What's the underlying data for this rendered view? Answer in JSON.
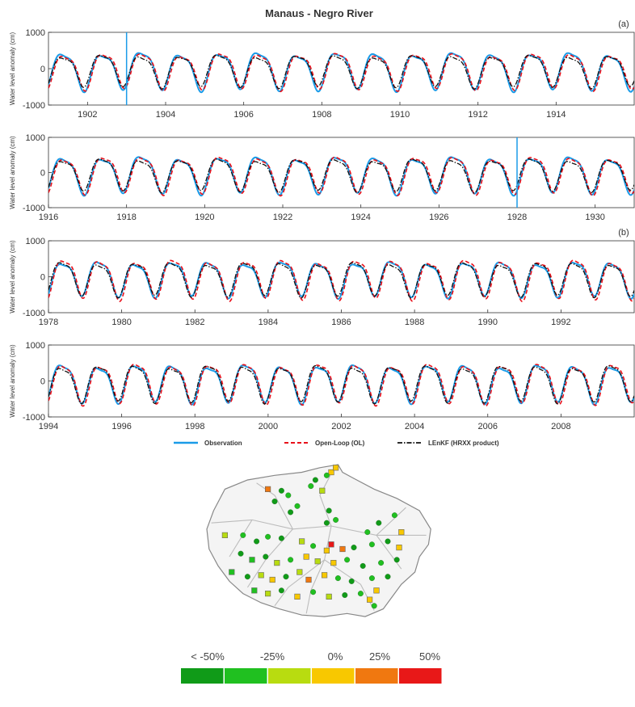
{
  "title": "Manaus - Negro River",
  "panel_labels": [
    "(a)",
    "(b)"
  ],
  "colors": {
    "observation": "#1a9be8",
    "open_loop": "#e8101a",
    "lenkf": "#111111",
    "scale": [
      "#109b18",
      "#20c020",
      "#b8dc10",
      "#f8c800",
      "#f07810",
      "#e81818"
    ]
  },
  "chart_data": [
    {
      "type": "line",
      "ylabel": "Water level anomaly (cm)",
      "ylim": [
        -1000,
        1000
      ],
      "yticks": [
        1000,
        0,
        -1000
      ],
      "xlim": [
        1901,
        1916
      ],
      "xticks": [
        1902,
        1904,
        1906,
        1908,
        1910,
        1912,
        1914
      ],
      "markers": [
        1903
      ],
      "series": [
        {
          "name": "Observation",
          "style": "solid",
          "amplitude": 550
        },
        {
          "name": "Open-Loop (OL)",
          "style": "dashed",
          "amplitude": 530
        },
        {
          "name": "LEnKF (HRXX product)",
          "style": "dashdot",
          "amplitude": 470
        }
      ]
    },
    {
      "type": "line",
      "ylabel": "Water level anomaly (cm)",
      "ylim": [
        -1000,
        1000
      ],
      "yticks": [
        1000,
        0,
        -1000
      ],
      "xlim": [
        1916,
        1931
      ],
      "xticks": [
        1916,
        1918,
        1920,
        1922,
        1924,
        1926,
        1928,
        1930
      ],
      "markers": [
        1928
      ],
      "series": [
        {
          "name": "Observation",
          "style": "solid",
          "amplitude": 560
        },
        {
          "name": "Open-Loop (OL)",
          "style": "dashed",
          "amplitude": 560
        },
        {
          "name": "LEnKF (HRXX product)",
          "style": "dashdot",
          "amplitude": 490
        }
      ]
    },
    {
      "type": "line",
      "ylabel": "Water level anomaly (cm)",
      "ylim": [
        -1000,
        1000
      ],
      "yticks": [
        1000,
        0,
        -1000
      ],
      "xlim": [
        1978,
        1994
      ],
      "xticks": [
        1978,
        1980,
        1982,
        1984,
        1986,
        1988,
        1990,
        1992
      ],
      "markers": [],
      "series": [
        {
          "name": "Observation",
          "style": "solid",
          "amplitude": 520
        },
        {
          "name": "Open-Loop (OL)",
          "style": "dashed",
          "amplitude": 580
        },
        {
          "name": "LEnKF (HRXX product)",
          "style": "dashdot",
          "amplitude": 500
        }
      ]
    },
    {
      "type": "line",
      "ylabel": "Water level anomaly (cm)",
      "ylim": [
        -1000,
        1000
      ],
      "yticks": [
        1000,
        0,
        -1000
      ],
      "xlim": [
        1994,
        2010
      ],
      "xticks": [
        1994,
        1996,
        1998,
        2000,
        2002,
        2004,
        2006,
        2008
      ],
      "markers": [],
      "series": [
        {
          "name": "Observation",
          "style": "solid",
          "amplitude": 560
        },
        {
          "name": "Open-Loop (OL)",
          "style": "dashed",
          "amplitude": 590
        },
        {
          "name": "LEnKF (HRXX product)",
          "style": "dashdot",
          "amplitude": 540
        }
      ]
    }
  ],
  "legend": [
    "Observation",
    "Open-Loop (OL)",
    "LEnKF (HRXX product)"
  ],
  "map_scale": {
    "labels": [
      "< -50%",
      "-25%",
      "0%",
      "25%",
      "50%"
    ]
  },
  "map_stations": [
    {
      "lon": 0.55,
      "lat": 0.05,
      "cls": 3,
      "shape": "square"
    },
    {
      "lon": 0.57,
      "lat": 0.02,
      "cls": 3,
      "shape": "square"
    },
    {
      "lon": 0.53,
      "lat": 0.07,
      "cls": 1,
      "shape": "circle"
    },
    {
      "lon": 0.48,
      "lat": 0.1,
      "cls": 0,
      "shape": "circle"
    },
    {
      "lon": 0.46,
      "lat": 0.14,
      "cls": 1,
      "shape": "circle"
    },
    {
      "lon": 0.51,
      "lat": 0.17,
      "cls": 2,
      "shape": "square"
    },
    {
      "lon": 0.27,
      "lat": 0.16,
      "cls": 4,
      "shape": "square"
    },
    {
      "lon": 0.33,
      "lat": 0.17,
      "cls": 0,
      "shape": "circle"
    },
    {
      "lon": 0.36,
      "lat": 0.2,
      "cls": 1,
      "shape": "circle"
    },
    {
      "lon": 0.3,
      "lat": 0.24,
      "cls": 0,
      "shape": "circle"
    },
    {
      "lon": 0.4,
      "lat": 0.27,
      "cls": 1,
      "shape": "circle"
    },
    {
      "lon": 0.37,
      "lat": 0.31,
      "cls": 0,
      "shape": "circle"
    },
    {
      "lon": 0.54,
      "lat": 0.3,
      "cls": 0,
      "shape": "circle"
    },
    {
      "lon": 0.57,
      "lat": 0.36,
      "cls": 1,
      "shape": "circle"
    },
    {
      "lon": 0.53,
      "lat": 0.38,
      "cls": 0,
      "shape": "circle"
    },
    {
      "lon": 0.83,
      "lat": 0.33,
      "cls": 1,
      "shape": "circle"
    },
    {
      "lon": 0.76,
      "lat": 0.38,
      "cls": 0,
      "shape": "circle"
    },
    {
      "lon": 0.71,
      "lat": 0.44,
      "cls": 1,
      "shape": "circle"
    },
    {
      "lon": 0.86,
      "lat": 0.44,
      "cls": 3,
      "shape": "square"
    },
    {
      "lon": 0.08,
      "lat": 0.46,
      "cls": 2,
      "shape": "square"
    },
    {
      "lon": 0.16,
      "lat": 0.46,
      "cls": 1,
      "shape": "circle"
    },
    {
      "lon": 0.22,
      "lat": 0.5,
      "cls": 0,
      "shape": "circle"
    },
    {
      "lon": 0.27,
      "lat": 0.47,
      "cls": 1,
      "shape": "circle"
    },
    {
      "lon": 0.33,
      "lat": 0.48,
      "cls": 0,
      "shape": "circle"
    },
    {
      "lon": 0.42,
      "lat": 0.5,
      "cls": 2,
      "shape": "square"
    },
    {
      "lon": 0.47,
      "lat": 0.53,
      "cls": 1,
      "shape": "circle"
    },
    {
      "lon": 0.55,
      "lat": 0.52,
      "cls": 5,
      "shape": "square"
    },
    {
      "lon": 0.53,
      "lat": 0.56,
      "cls": 3,
      "shape": "square"
    },
    {
      "lon": 0.6,
      "lat": 0.55,
      "cls": 4,
      "shape": "square"
    },
    {
      "lon": 0.65,
      "lat": 0.54,
      "cls": 0,
      "shape": "circle"
    },
    {
      "lon": 0.73,
      "lat": 0.52,
      "cls": 1,
      "shape": "circle"
    },
    {
      "lon": 0.8,
      "lat": 0.5,
      "cls": 0,
      "shape": "circle"
    },
    {
      "lon": 0.85,
      "lat": 0.54,
      "cls": 3,
      "shape": "square"
    },
    {
      "lon": 0.15,
      "lat": 0.58,
      "cls": 0,
      "shape": "circle"
    },
    {
      "lon": 0.2,
      "lat": 0.62,
      "cls": 1,
      "shape": "square"
    },
    {
      "lon": 0.26,
      "lat": 0.6,
      "cls": 0,
      "shape": "circle"
    },
    {
      "lon": 0.31,
      "lat": 0.64,
      "cls": 2,
      "shape": "square"
    },
    {
      "lon": 0.37,
      "lat": 0.62,
      "cls": 1,
      "shape": "circle"
    },
    {
      "lon": 0.44,
      "lat": 0.6,
      "cls": 3,
      "shape": "square"
    },
    {
      "lon": 0.49,
      "lat": 0.63,
      "cls": 2,
      "shape": "square"
    },
    {
      "lon": 0.56,
      "lat": 0.64,
      "cls": 3,
      "shape": "square"
    },
    {
      "lon": 0.62,
      "lat": 0.62,
      "cls": 1,
      "shape": "circle"
    },
    {
      "lon": 0.69,
      "lat": 0.66,
      "cls": 0,
      "shape": "circle"
    },
    {
      "lon": 0.77,
      "lat": 0.64,
      "cls": 1,
      "shape": "circle"
    },
    {
      "lon": 0.84,
      "lat": 0.62,
      "cls": 0,
      "shape": "circle"
    },
    {
      "lon": 0.11,
      "lat": 0.7,
      "cls": 1,
      "shape": "square"
    },
    {
      "lon": 0.18,
      "lat": 0.73,
      "cls": 0,
      "shape": "circle"
    },
    {
      "lon": 0.24,
      "lat": 0.72,
      "cls": 2,
      "shape": "square"
    },
    {
      "lon": 0.29,
      "lat": 0.75,
      "cls": 3,
      "shape": "square"
    },
    {
      "lon": 0.35,
      "lat": 0.73,
      "cls": 0,
      "shape": "circle"
    },
    {
      "lon": 0.41,
      "lat": 0.7,
      "cls": 2,
      "shape": "square"
    },
    {
      "lon": 0.45,
      "lat": 0.75,
      "cls": 4,
      "shape": "square"
    },
    {
      "lon": 0.52,
      "lat": 0.72,
      "cls": 3,
      "shape": "square"
    },
    {
      "lon": 0.58,
      "lat": 0.74,
      "cls": 1,
      "shape": "circle"
    },
    {
      "lon": 0.64,
      "lat": 0.76,
      "cls": 0,
      "shape": "circle"
    },
    {
      "lon": 0.73,
      "lat": 0.74,
      "cls": 1,
      "shape": "circle"
    },
    {
      "lon": 0.8,
      "lat": 0.73,
      "cls": 0,
      "shape": "circle"
    },
    {
      "lon": 0.21,
      "lat": 0.82,
      "cls": 1,
      "shape": "square"
    },
    {
      "lon": 0.27,
      "lat": 0.84,
      "cls": 2,
      "shape": "square"
    },
    {
      "lon": 0.33,
      "lat": 0.82,
      "cls": 0,
      "shape": "circle"
    },
    {
      "lon": 0.4,
      "lat": 0.86,
      "cls": 3,
      "shape": "square"
    },
    {
      "lon": 0.47,
      "lat": 0.83,
      "cls": 1,
      "shape": "circle"
    },
    {
      "lon": 0.54,
      "lat": 0.86,
      "cls": 2,
      "shape": "square"
    },
    {
      "lon": 0.61,
      "lat": 0.85,
      "cls": 0,
      "shape": "circle"
    },
    {
      "lon": 0.68,
      "lat": 0.84,
      "cls": 1,
      "shape": "circle"
    },
    {
      "lon": 0.75,
      "lat": 0.82,
      "cls": 3,
      "shape": "square"
    },
    {
      "lon": 0.74,
      "lat": 0.92,
      "cls": 1,
      "shape": "circle"
    },
    {
      "lon": 0.72,
      "lat": 0.88,
      "cls": 3,
      "shape": "square"
    }
  ]
}
